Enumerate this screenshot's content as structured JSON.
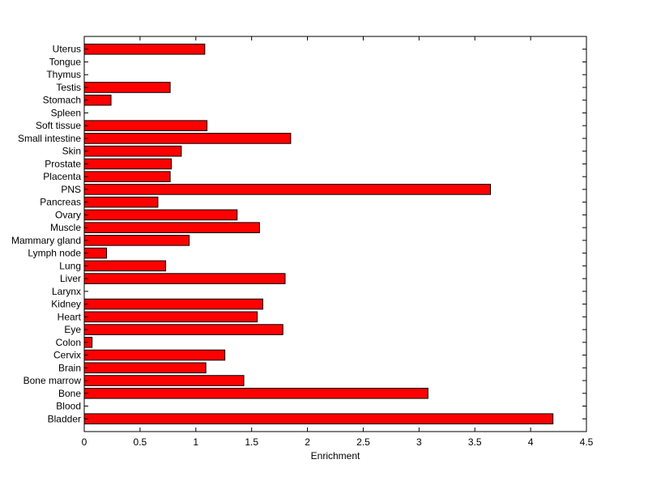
{
  "chart_data": {
    "type": "bar",
    "orientation": "horizontal",
    "title": "",
    "xlabel": "Enrichment",
    "ylabel": "",
    "xlim": [
      0,
      4.5
    ],
    "xticks": [
      "0",
      "0.5",
      "1",
      "1.5",
      "2",
      "2.5",
      "3",
      "3.5",
      "4",
      "4.5"
    ],
    "grid": false,
    "bar_color": "#ff0000",
    "categories": [
      "Bladder",
      "Blood",
      "Bone",
      "Bone marrow",
      "Brain",
      "Cervix",
      "Colon",
      "Eye",
      "Heart",
      "Kidney",
      "Larynx",
      "Liver",
      "Lung",
      "Lymph node",
      "Mammary gland",
      "Muscle",
      "Ovary",
      "Pancreas",
      "PNS",
      "Placenta",
      "Prostate",
      "Skin",
      "Small intestine",
      "Soft tissue",
      "Spleen",
      "Stomach",
      "Testis",
      "Thymus",
      "Tongue",
      "Uterus"
    ],
    "values": [
      4.2,
      0,
      3.08,
      1.43,
      1.09,
      1.26,
      0.07,
      1.78,
      1.55,
      1.6,
      0,
      1.8,
      0.73,
      0.2,
      0.94,
      1.57,
      1.37,
      0.66,
      3.64,
      0.77,
      0.78,
      0.87,
      1.85,
      1.1,
      0,
      0.24,
      0.77,
      0,
      0,
      1.08
    ]
  }
}
